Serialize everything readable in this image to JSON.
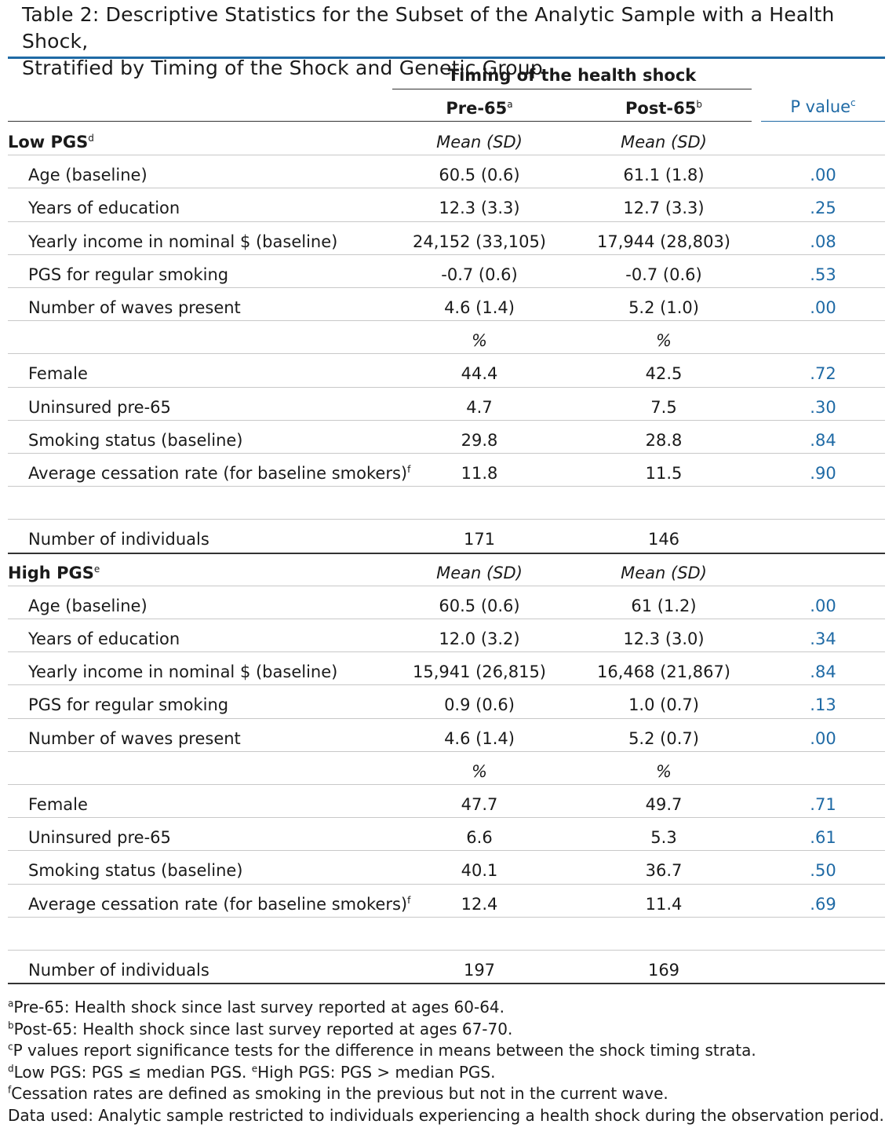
{
  "caption": {
    "line1": "Table 2: Descriptive Statistics for the Subset of the Analytic Sample with a Health Shock,",
    "line2": "Stratified by Timing of the Shock and Genetic Group"
  },
  "header": {
    "group": "Timing of the health shock",
    "col1": "Pre-65",
    "col1_sup": "a",
    "col2": "Post-65",
    "col2_sup": "b",
    "col3": "P value",
    "col3_sup": "c"
  },
  "sections": [
    {
      "title": "Low PGS",
      "title_sup": "d",
      "stat_label_1": "Mean (SD)",
      "stat_label_2": "Mean (SD)",
      "rows_mean": [
        {
          "label": "Age (baseline)",
          "pre": "60.5 (0.6)",
          "post": "61.1 (1.8)",
          "p": ".00"
        },
        {
          "label": "Years of education",
          "pre": "12.3 (3.3)",
          "post": "12.7 (3.3)",
          "p": ".25"
        },
        {
          "label": "Yearly income in nominal $ (baseline)",
          "pre": "24,152 (33,105)",
          "post": "17,944 (28,803)",
          "p": ".08"
        },
        {
          "label": "PGS for regular smoking",
          "pre": "-0.7 (0.6)",
          "post": "-0.7 (0.6)",
          "p": ".53"
        },
        {
          "label": "Number of waves present",
          "pre": "4.6 (1.4)",
          "post": "5.2 (1.0)",
          "p": ".00"
        }
      ],
      "pct_label_1": "%",
      "pct_label_2": "%",
      "rows_pct": [
        {
          "label": "Female",
          "pre": "44.4",
          "post": "42.5",
          "p": ".72"
        },
        {
          "label": "Uninsured pre-65",
          "pre": "4.7",
          "post": "7.5",
          "p": ".30"
        },
        {
          "label": "Smoking status (baseline)",
          "pre": "29.8",
          "post": "28.8",
          "p": ".84"
        },
        {
          "label": "Average cessation rate (for baseline smokers)",
          "label_sup": "f",
          "pre": "11.8",
          "post": "11.5",
          "p": ".90"
        }
      ],
      "n_row": {
        "label": "Number of individuals",
        "pre": "171",
        "post": "146"
      }
    },
    {
      "title": "High PGS",
      "title_sup": "e",
      "stat_label_1": "Mean (SD)",
      "stat_label_2": "Mean (SD)",
      "rows_mean": [
        {
          "label": "Age (baseline)",
          "pre": "60.5 (0.6)",
          "post": "61 (1.2)",
          "p": ".00"
        },
        {
          "label": "Years of education",
          "pre": "12.0 (3.2)",
          "post": "12.3 (3.0)",
          "p": ".34"
        },
        {
          "label": "Yearly income in nominal $ (baseline)",
          "pre": "15,941 (26,815)",
          "post": "16,468 (21,867)",
          "p": ".84"
        },
        {
          "label": "PGS for regular smoking",
          "pre": "0.9 (0.6)",
          "post": "1.0 (0.7)",
          "p": ".13"
        },
        {
          "label": "Number of waves present",
          "pre": "4.6 (1.4)",
          "post": "5.2 (0.7)",
          "p": ".00"
        }
      ],
      "pct_label_1": "%",
      "pct_label_2": "%",
      "rows_pct": [
        {
          "label": "Female",
          "pre": "47.7",
          "post": "49.7",
          "p": ".71"
        },
        {
          "label": "Uninsured pre-65",
          "pre": "6.6",
          "post": "5.3",
          "p": ".61"
        },
        {
          "label": "Smoking status (baseline)",
          "pre": "40.1",
          "post": "36.7",
          "p": ".50"
        },
        {
          "label": "Average cessation rate (for baseline smokers)",
          "label_sup": "f",
          "pre": "12.4",
          "post": "11.4",
          "p": ".69"
        }
      ],
      "n_row": {
        "label": "Number of individuals",
        "pre": "197",
        "post": "169"
      }
    }
  ],
  "footnotes": [
    {
      "sup": "a",
      "text": "Pre-65: Health shock since last survey reported at ages 60-64."
    },
    {
      "sup": "b",
      "text": "Post-65: Health shock since last survey reported at ages 67-70."
    },
    {
      "sup": "c",
      "text": "P values report significance tests for the difference in means between the shock timing strata."
    },
    {
      "sup": "d",
      "text": "Low PGS: PGS ≤ median PGS. ",
      "sup2": "e",
      "text2": "High PGS: PGS > median PGS."
    },
    {
      "sup": "f",
      "text": "Cessation rates are defined as smoking in the previous but not in the current wave."
    },
    {
      "sup": "",
      "text": "Data used: Analytic sample restricted to individuals experiencing a health shock during the observation period."
    }
  ],
  "colors": {
    "accent": "#1f6aa5",
    "rule": "#c8c8c8",
    "text": "#1a1a1a"
  }
}
